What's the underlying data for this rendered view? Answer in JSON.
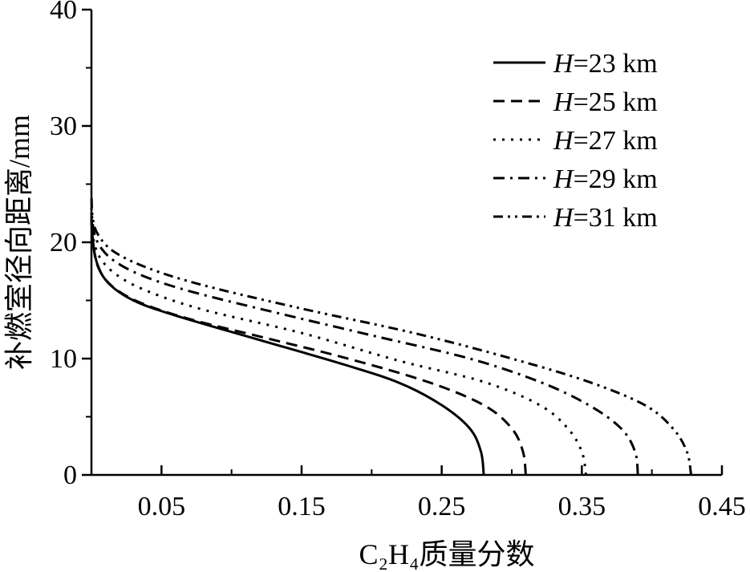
{
  "chart_data": {
    "type": "line",
    "xlabel": "C₂H₄质量分数",
    "ylabel": "补燃室径向距离/mm",
    "xlim": [
      0,
      0.45
    ],
    "ylim": [
      0,
      40
    ],
    "x_ticks": [
      "0.05",
      "0.15",
      "0.25",
      "0.35",
      "0.45"
    ],
    "x_tick_values": [
      0.05,
      0.15,
      0.25,
      0.35,
      0.45
    ],
    "y_ticks": [
      "0",
      "10",
      "20",
      "30",
      "40"
    ],
    "y_tick_values": [
      0,
      10,
      20,
      30,
      40
    ],
    "grid": false,
    "legend_position": "top-right",
    "series": [
      {
        "name": "H=23 km",
        "dash": "solid",
        "points": [
          [
            0.28,
            0
          ],
          [
            0.278,
            2
          ],
          [
            0.27,
            4
          ],
          [
            0.25,
            6
          ],
          [
            0.22,
            7.9
          ],
          [
            0.18,
            9.5
          ],
          [
            0.12,
            11.6
          ],
          [
            0.06,
            13.7
          ],
          [
            0.03,
            15.0
          ],
          [
            0.012,
            16.5
          ],
          [
            0.004,
            18.2
          ],
          [
            0.001,
            20.2
          ],
          [
            0.0,
            22
          ]
        ]
      },
      {
        "name": "H=25 km",
        "dash": "dashed",
        "points": [
          [
            0.31,
            0
          ],
          [
            0.308,
            2
          ],
          [
            0.3,
            4
          ],
          [
            0.28,
            6
          ],
          [
            0.24,
            8
          ],
          [
            0.18,
            10.1
          ],
          [
            0.12,
            11.9
          ],
          [
            0.07,
            13.4
          ],
          [
            0.035,
            14.8
          ],
          [
            0.015,
            16.2
          ],
          [
            0.005,
            17.8
          ],
          [
            0.001,
            20
          ],
          [
            0.0,
            22.3
          ]
        ]
      },
      {
        "name": "H=27 km",
        "dash": "dotted",
        "points": [
          [
            0.353,
            0
          ],
          [
            0.35,
            2
          ],
          [
            0.34,
            4
          ],
          [
            0.32,
            6
          ],
          [
            0.28,
            8
          ],
          [
            0.22,
            9.8
          ],
          [
            0.15,
            12.2
          ],
          [
            0.08,
            14.2
          ],
          [
            0.04,
            15.8
          ],
          [
            0.018,
            17.2
          ],
          [
            0.006,
            18.7
          ],
          [
            0.001,
            20.5
          ],
          [
            0.0,
            22.6
          ]
        ]
      },
      {
        "name": "H=29 km",
        "dash": "dashdot",
        "points": [
          [
            0.39,
            0
          ],
          [
            0.388,
            2
          ],
          [
            0.378,
            4
          ],
          [
            0.355,
            6
          ],
          [
            0.32,
            8
          ],
          [
            0.27,
            10
          ],
          [
            0.2,
            12
          ],
          [
            0.13,
            14
          ],
          [
            0.07,
            15.8
          ],
          [
            0.035,
            17.2
          ],
          [
            0.014,
            18.6
          ],
          [
            0.004,
            20.1
          ],
          [
            0.001,
            21.5
          ],
          [
            0.0,
            23
          ]
        ]
      },
      {
        "name": "H=31 km",
        "dash": "dashdotdot",
        "points": [
          [
            0.428,
            0
          ],
          [
            0.425,
            2
          ],
          [
            0.415,
            4
          ],
          [
            0.395,
            6
          ],
          [
            0.355,
            8
          ],
          [
            0.3,
            10
          ],
          [
            0.23,
            12.2
          ],
          [
            0.15,
            14.3
          ],
          [
            0.08,
            16.3
          ],
          [
            0.04,
            17.8
          ],
          [
            0.016,
            19.2
          ],
          [
            0.005,
            20.6
          ],
          [
            0.001,
            22
          ],
          [
            0.0,
            24
          ]
        ]
      }
    ]
  }
}
